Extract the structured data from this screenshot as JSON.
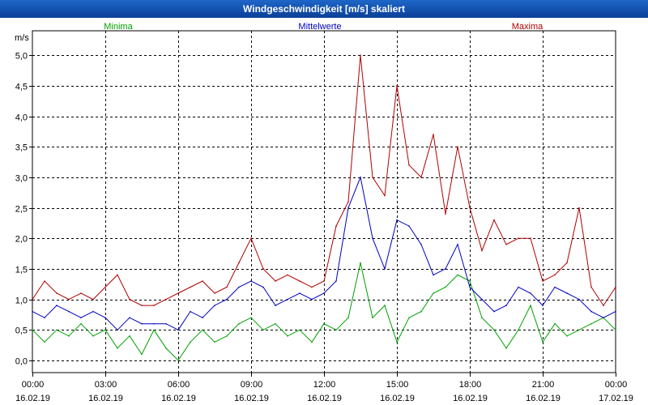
{
  "window_title": "Windgeschwindigkeit [m/s] skaliert",
  "chart_data": {
    "type": "line",
    "title": "Windgeschwindigkeit [m/s] skaliert",
    "ylabel": "m/s",
    "xlabel": "",
    "ylim": [
      -0.2,
      5.4
    ],
    "y_ticks": [
      "0,0",
      "0,5",
      "1,0",
      "1,5",
      "2,0",
      "2,5",
      "3,0",
      "3,5",
      "4,0",
      "4,5",
      "5,0"
    ],
    "y_tick_values": [
      0,
      0.5,
      1.0,
      1.5,
      2.0,
      2.5,
      3.0,
      3.5,
      4.0,
      4.5,
      5.0
    ],
    "x_tick_times": [
      "00:00",
      "03:00",
      "06:00",
      "09:00",
      "12:00",
      "15:00",
      "18:00",
      "21:00",
      "00:00"
    ],
    "x_tick_dates": [
      "16.02.19",
      "16.02.19",
      "16.02.19",
      "16.02.19",
      "16.02.19",
      "16.02.19",
      "16.02.19",
      "16.02.19",
      "17.02.19"
    ],
    "x_tick_hours": [
      0,
      3,
      6,
      9,
      12,
      15,
      18,
      21,
      24
    ],
    "xlim_hours": [
      0,
      24
    ],
    "grid": true,
    "legend": [
      {
        "name": "Minima",
        "color": "#00a000"
      },
      {
        "name": "Mittelwerte",
        "color": "#0000c0"
      },
      {
        "name": "Maxima",
        "color": "#b00000"
      }
    ],
    "series": [
      {
        "name": "Minima",
        "color": "#00a000",
        "x_hours": [
          0,
          0.5,
          1,
          1.5,
          2,
          2.5,
          3,
          3.5,
          4,
          4.5,
          5,
          5.5,
          6,
          6.5,
          7,
          7.5,
          8,
          8.5,
          9,
          9.5,
          10,
          10.5,
          11,
          11.5,
          12,
          12.5,
          13,
          13.5,
          14,
          14.5,
          15,
          15.5,
          16,
          16.5,
          17,
          17.5,
          18,
          18.5,
          19,
          19.5,
          20,
          20.5,
          21,
          21.5,
          22,
          22.5,
          23,
          23.5,
          24
        ],
        "values": [
          0.5,
          0.3,
          0.5,
          0.4,
          0.6,
          0.4,
          0.5,
          0.2,
          0.4,
          0.1,
          0.5,
          0.2,
          0,
          0.3,
          0.5,
          0.3,
          0.4,
          0.6,
          0.7,
          0.5,
          0.6,
          0.4,
          0.5,
          0.3,
          0.6,
          0.5,
          0.7,
          1.6,
          0.7,
          0.9,
          0.3,
          0.7,
          0.8,
          1.1,
          1.2,
          1.4,
          1.3,
          0.7,
          0.5,
          0.2,
          0.5,
          0.9,
          0.3,
          0.6,
          0.4,
          0.5,
          0.6,
          0.7,
          0.5
        ]
      },
      {
        "name": "Mittelwerte",
        "color": "#0000c0",
        "x_hours": [
          0,
          0.5,
          1,
          1.5,
          2,
          2.5,
          3,
          3.5,
          4,
          4.5,
          5,
          5.5,
          6,
          6.5,
          7,
          7.5,
          8,
          8.5,
          9,
          9.5,
          10,
          10.5,
          11,
          11.5,
          12,
          12.5,
          13,
          13.5,
          14,
          14.5,
          15,
          15.5,
          16,
          16.5,
          17,
          17.5,
          18,
          18.5,
          19,
          19.5,
          20,
          20.5,
          21,
          21.5,
          22,
          22.5,
          23,
          23.5,
          24
        ],
        "values": [
          0.8,
          0.7,
          0.9,
          0.8,
          0.7,
          0.8,
          0.7,
          0.5,
          0.7,
          0.6,
          0.6,
          0.6,
          0.5,
          0.8,
          0.7,
          0.9,
          1.0,
          1.2,
          1.3,
          1.2,
          0.9,
          1.0,
          1.1,
          1.0,
          1.1,
          1.3,
          2.5,
          3.0,
          2.0,
          1.5,
          2.3,
          2.2,
          1.9,
          1.4,
          1.5,
          1.9,
          1.2,
          1.0,
          0.8,
          0.9,
          1.2,
          1.1,
          0.9,
          1.2,
          1.1,
          1.0,
          0.8,
          0.7,
          0.8
        ]
      },
      {
        "name": "Maxima",
        "color": "#b00000",
        "x_hours": [
          0,
          0.5,
          1,
          1.5,
          2,
          2.5,
          3,
          3.5,
          4,
          4.5,
          5,
          5.5,
          6,
          6.5,
          7,
          7.5,
          8,
          8.5,
          9,
          9.5,
          10,
          10.5,
          11,
          11.5,
          12,
          12.5,
          13,
          13.5,
          14,
          14.5,
          15,
          15.5,
          16,
          16.5,
          17,
          17.5,
          18,
          18.5,
          19,
          19.5,
          20,
          20.5,
          21,
          21.5,
          22,
          22.5,
          23,
          23.5,
          24
        ],
        "values": [
          1.0,
          1.3,
          1.1,
          1.0,
          1.1,
          1.0,
          1.2,
          1.4,
          1.0,
          0.9,
          0.9,
          1.0,
          1.1,
          1.2,
          1.3,
          1.1,
          1.2,
          1.6,
          2.0,
          1.5,
          1.3,
          1.4,
          1.3,
          1.2,
          1.3,
          2.2,
          2.6,
          5.0,
          3.0,
          2.7,
          4.5,
          3.2,
          3.0,
          3.7,
          2.4,
          3.5,
          2.5,
          1.8,
          2.3,
          1.9,
          2.0,
          2.0,
          1.3,
          1.4,
          1.6,
          2.5,
          1.2,
          0.9,
          1.2
        ]
      }
    ]
  }
}
